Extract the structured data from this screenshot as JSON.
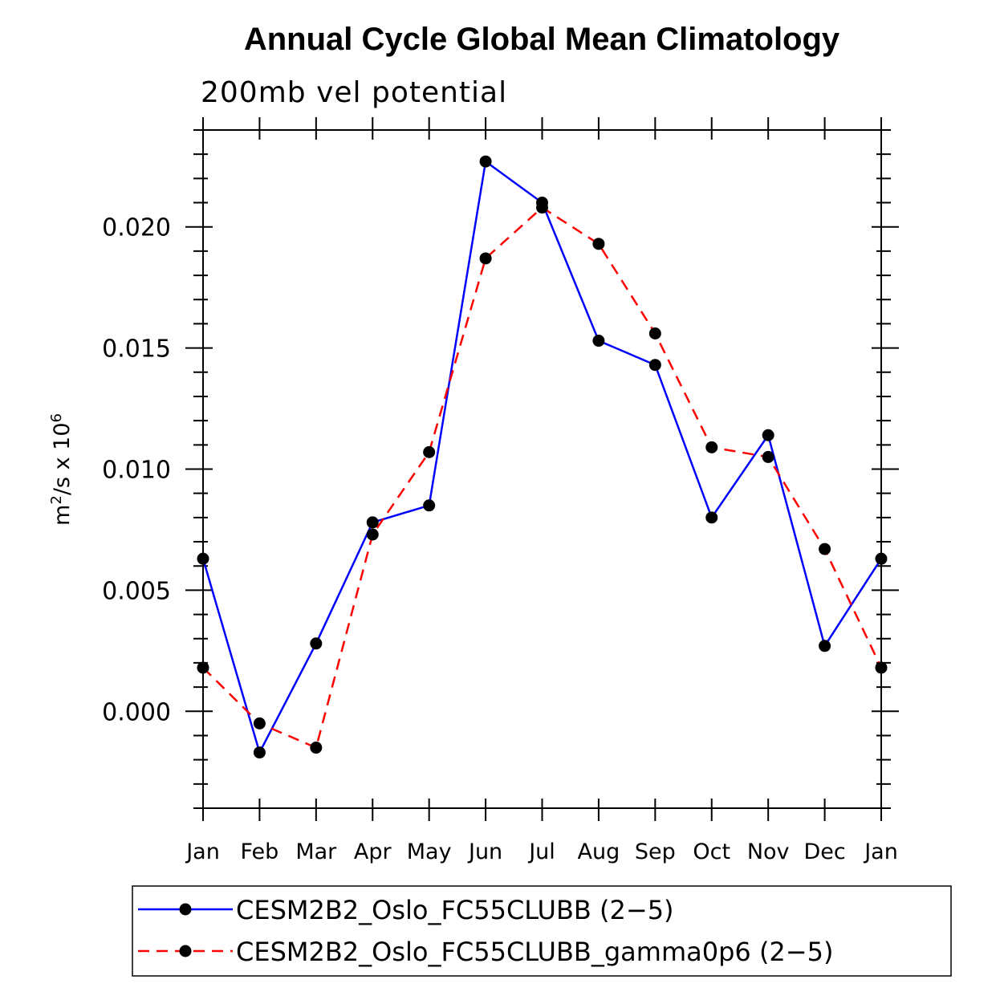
{
  "chart_data": {
    "type": "line",
    "title": "Annual Cycle Global Mean Climatology",
    "subtitle": "200mb vel potential",
    "ylabel": {
      "base": "m",
      "sup1": "2",
      "mid": "/s x 10",
      "sup2": "6"
    },
    "xlabel": "",
    "categories": [
      "Jan",
      "Feb",
      "Mar",
      "Apr",
      "May",
      "Jun",
      "Jul",
      "Aug",
      "Sep",
      "Oct",
      "Nov",
      "Dec",
      "Jan"
    ],
    "ylim": [
      -0.004,
      0.024
    ],
    "yticks": [
      0.0,
      0.005,
      0.01,
      0.015,
      0.02
    ],
    "ytick_labels": [
      "0.000",
      "0.005",
      "0.010",
      "0.015",
      "0.020"
    ],
    "series": [
      {
        "name": "CESM2B2_Oslo_FC55CLUBB (2-5)",
        "color": "#0000ff",
        "style": "solid",
        "values": [
          0.0063,
          -0.0017,
          0.0028,
          0.0078,
          0.0085,
          0.0227,
          0.021,
          0.0153,
          0.0143,
          0.008,
          0.0114,
          0.0027,
          0.0063
        ]
      },
      {
        "name": "CESM2B2_Oslo_FC55CLUBB_gamma0p6 (2-5)",
        "color": "#ff0000",
        "style": "dashed",
        "values": [
          0.0018,
          -0.0005,
          -0.0015,
          0.0073,
          0.0107,
          0.0187,
          0.0208,
          0.0193,
          0.0156,
          0.0109,
          0.0105,
          0.0067,
          0.0018
        ]
      }
    ],
    "legend": {
      "position": "bottom",
      "entries": [
        "CESM2B2_Oslo_FC55CLUBB (2−5)",
        "CESM2B2_Oslo_FC55CLUBB_gamma0p6 (2−5)"
      ]
    },
    "grid": false
  }
}
